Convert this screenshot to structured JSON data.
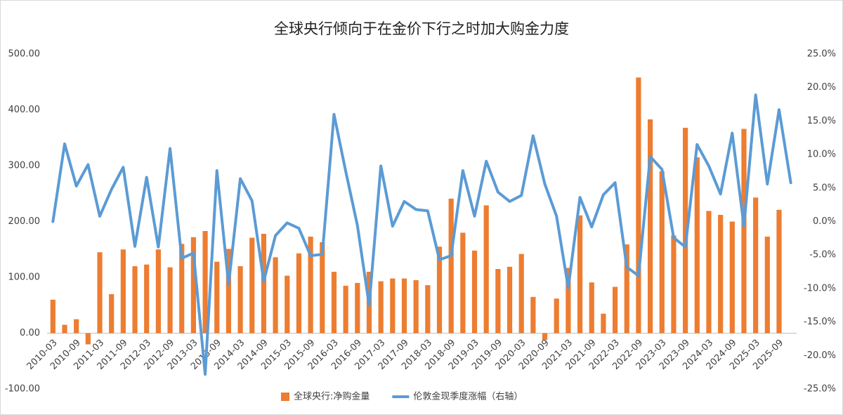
{
  "chart_data": {
    "type": "bar_line",
    "title": "全球央行倾向于在金价下行之时加大购金力度",
    "categories": [
      "2010-03",
      null,
      "2010-09",
      null,
      "2011-03",
      null,
      "2011-09",
      null,
      "2012-03",
      null,
      "2012-09",
      null,
      "2013-03",
      null,
      "2013-09",
      null,
      "2014-03",
      null,
      "2014-09",
      null,
      "2015-03",
      null,
      "2015-09",
      null,
      "2016-03",
      null,
      "2016-09",
      null,
      "2017-03",
      null,
      "2017-09",
      null,
      "2018-03",
      null,
      "2018-09",
      null,
      "2019-03",
      null,
      "2019-09",
      null,
      "2020-03",
      null,
      "2020-09",
      null,
      "2021-03",
      null,
      "2021-09",
      null,
      "2022-03",
      null,
      "2022-09",
      null,
      "2023-03",
      null,
      "2023-09",
      null,
      "2024-03",
      null,
      "2024-09",
      null,
      "2025-03",
      null,
      "2025-09",
      null
    ],
    "series": [
      {
        "name": "全球央行:净购金量",
        "color": "#ED7D31",
        "kind": "bar",
        "values": [
          60,
          15,
          25,
          -20,
          145,
          70,
          150,
          120,
          123,
          150,
          118,
          160,
          172,
          183,
          128,
          151,
          120,
          171,
          178,
          136,
          103,
          143,
          173,
          163,
          110,
          85,
          90,
          110,
          93,
          98,
          98,
          95,
          86,
          155,
          241,
          180,
          148,
          229,
          115,
          119,
          142,
          65,
          -12,
          62,
          117,
          211,
          91,
          35,
          83,
          159,
          458,
          383,
          290,
          175,
          368,
          315,
          219,
          212,
          200,
          366,
          243,
          173,
          221,
          null
        ]
      },
      {
        "name": "伦敦金现季度涨幅（右轴）",
        "color": "#5B9BD5",
        "kind": "line",
        "axis": "y2",
        "values": [
          0,
          11.6,
          5.3,
          8.5,
          0.8,
          4.8,
          8.1,
          -3.7,
          6.6,
          -3.8,
          10.9,
          -5.5,
          -4.7,
          -22.8,
          7.6,
          -9.4,
          6.4,
          3.1,
          -8.9,
          -2.1,
          -0.2,
          -1.0,
          -5.1,
          -4.9,
          16.0,
          7.5,
          -0.6,
          -12.5,
          8.3,
          -0.7,
          3.0,
          1.8,
          1.6,
          -5.7,
          -5.1,
          7.6,
          0.8,
          9.0,
          4.4,
          3.0,
          3.9,
          12.8,
          5.6,
          0.8,
          -9.9,
          3.6,
          -0.8,
          4.0,
          5.8,
          -6.8,
          -8.1,
          9.7,
          7.8,
          -2.4,
          -3.8,
          11.5,
          8.3,
          4.1,
          13.2,
          -0.7,
          18.9,
          5.6,
          16.7,
          5.8
        ]
      }
    ],
    "ylim": [
      -100,
      500
    ],
    "yticks": [
      {
        "value": -100,
        "label": "-100.00"
      },
      {
        "value": 0,
        "label": "0.00"
      },
      {
        "value": 100,
        "label": "100.00"
      },
      {
        "value": 200,
        "label": "200.00"
      },
      {
        "value": 300,
        "label": "300.00"
      },
      {
        "value": 400,
        "label": "400.00"
      },
      {
        "value": 500,
        "label": "500.00"
      }
    ],
    "y2lim": [
      -25,
      25
    ],
    "y2ticks": [
      {
        "value": -25,
        "label": "-25.0%"
      },
      {
        "value": -20,
        "label": "-20.0%"
      },
      {
        "value": -15,
        "label": "-15.0%"
      },
      {
        "value": -10,
        "label": "-10.0%"
      },
      {
        "value": -5,
        "label": "-5.0%"
      },
      {
        "value": 0,
        "label": "0.0%"
      },
      {
        "value": 5,
        "label": "5.0%"
      },
      {
        "value": 10,
        "label": "10.0%"
      },
      {
        "value": 15,
        "label": "15.0%"
      },
      {
        "value": 20,
        "label": "20.0%"
      },
      {
        "value": 25,
        "label": "25.0%"
      }
    ],
    "grid": false,
    "legend": "bottom"
  }
}
